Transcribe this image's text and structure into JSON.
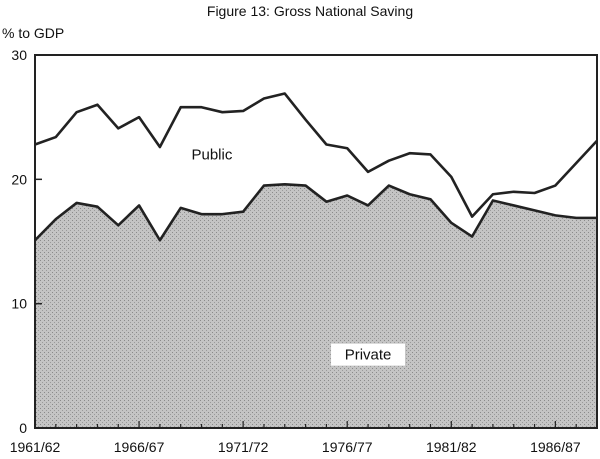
{
  "chart_data": {
    "type": "area",
    "stacked": true,
    "title": "Figure 13: Gross National Saving",
    "ylabel": "% to GDP",
    "xlabel": "",
    "ylim": [
      0,
      30
    ],
    "yticks": [
      "0",
      "10",
      "20",
      "30"
    ],
    "x_tick_labels": [
      "1961/62",
      "1966/67",
      "1971/72",
      "1976/77",
      "1981/82",
      "1986/87"
    ],
    "x": [
      "1961/62",
      "1962/63",
      "1963/64",
      "1964/65",
      "1965/66",
      "1966/67",
      "1967/68",
      "1968/69",
      "1969/70",
      "1970/71",
      "1971/72",
      "1972/73",
      "1973/74",
      "1974/75",
      "1975/76",
      "1976/77",
      "1977/78",
      "1978/79",
      "1979/80",
      "1980/81",
      "1981/82",
      "1982/83",
      "1983/84",
      "1984/85",
      "1985/86",
      "1986/87",
      "1987/88",
      "1988/89"
    ],
    "series": [
      {
        "name": "Private",
        "values": [
          15.1,
          16.8,
          18.1,
          17.8,
          16.3,
          17.9,
          15.1,
          17.7,
          17.2,
          17.2,
          17.4,
          19.5,
          19.6,
          19.5,
          18.2,
          18.7,
          17.9,
          19.5,
          18.8,
          18.4,
          16.5,
          15.4,
          18.3,
          17.9,
          17.5,
          17.1,
          16.9,
          16.9
        ]
      },
      {
        "name": "Public",
        "total": [
          22.8,
          23.4,
          25.4,
          26.0,
          24.1,
          25.0,
          22.6,
          25.8,
          25.8,
          25.4,
          25.5,
          26.5,
          26.9,
          24.8,
          22.8,
          22.5,
          20.6,
          21.5,
          22.1,
          22.0,
          20.2,
          17.0,
          18.8,
          19.0,
          18.9,
          19.5,
          21.3,
          23.1
        ]
      }
    ],
    "series_labels": {
      "public": "Public",
      "private": "Private"
    },
    "colors": {
      "private_fill": "#b9b9b9",
      "public_fill": "#ffffff",
      "line": "#222222"
    }
  }
}
